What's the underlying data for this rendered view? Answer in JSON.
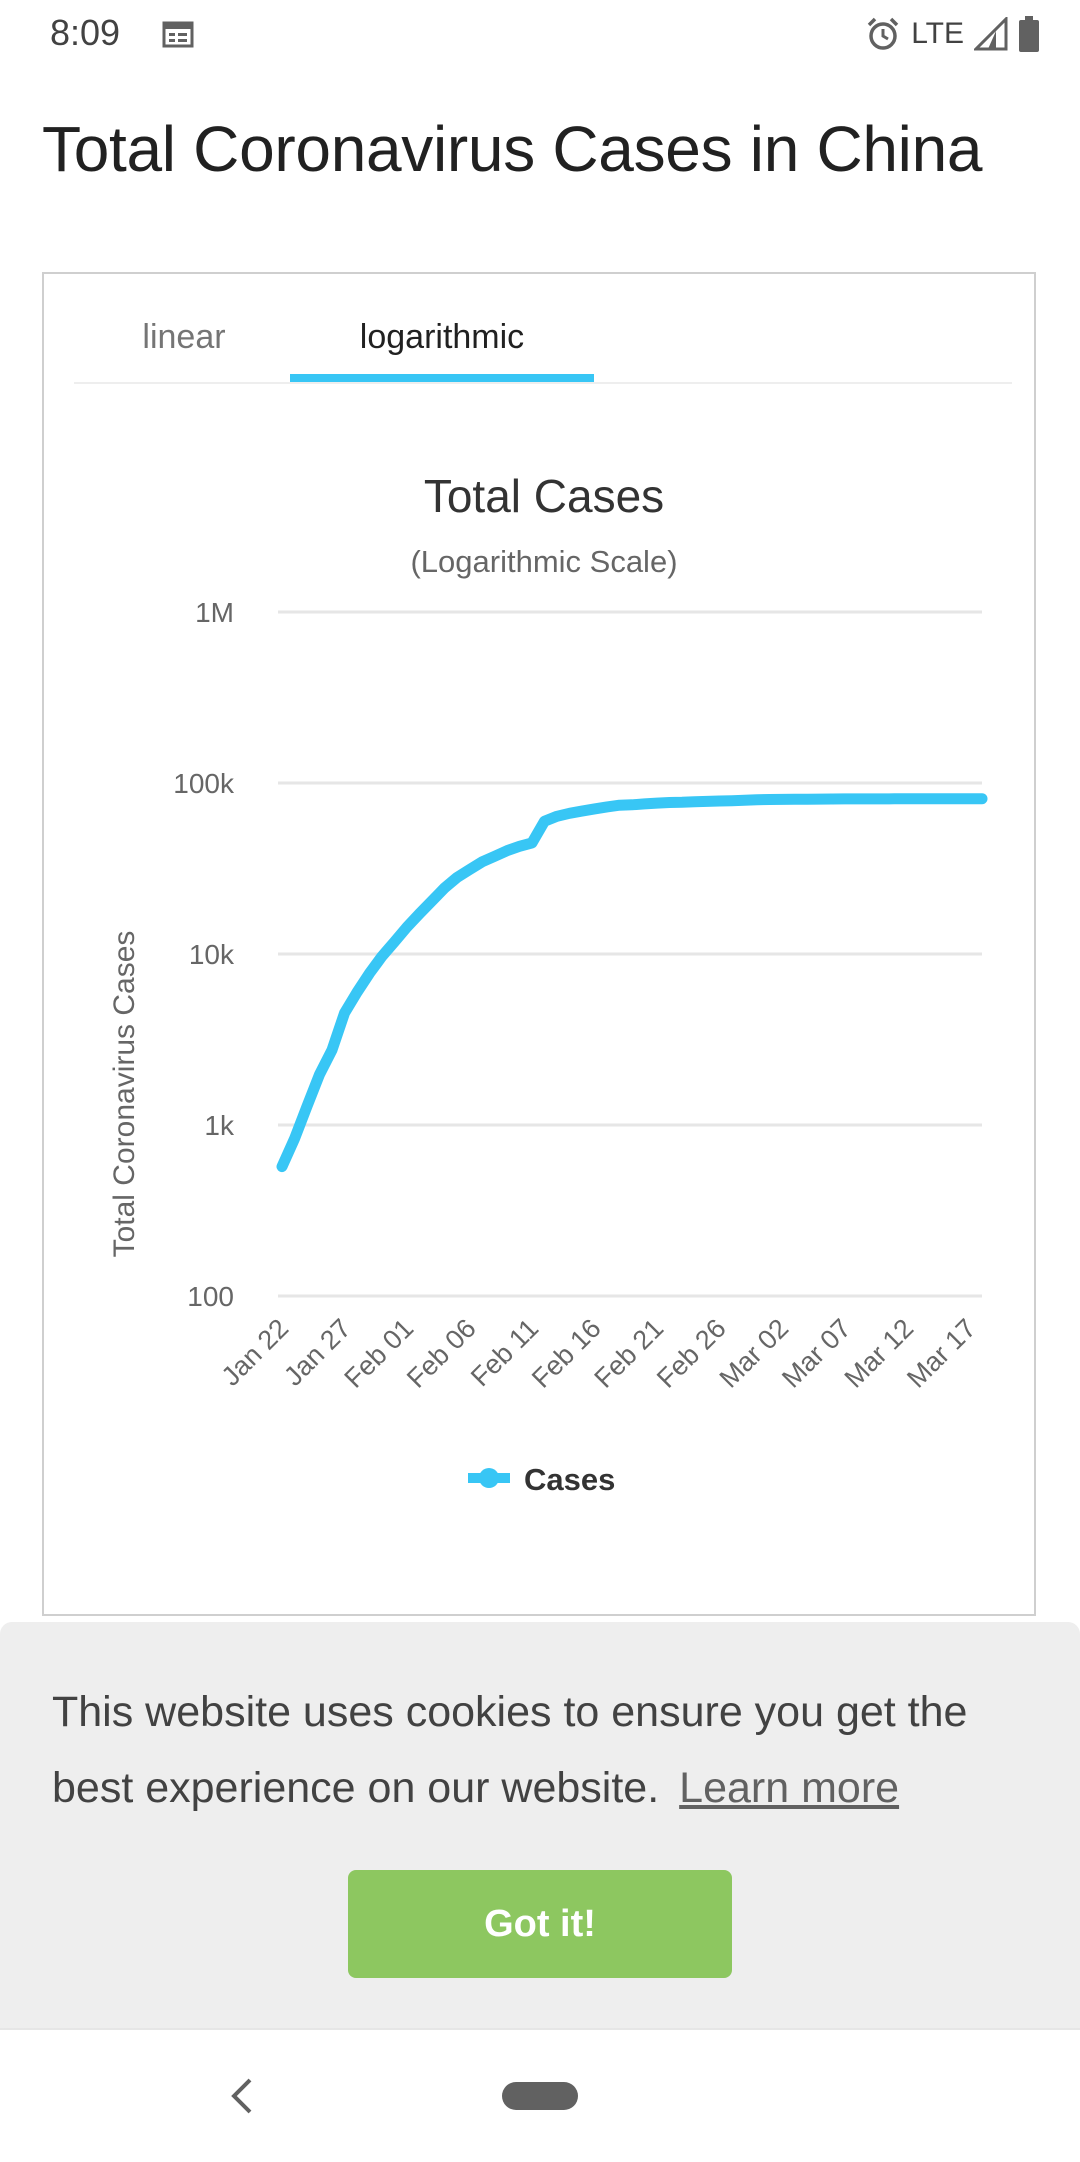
{
  "status": {
    "time": "8:09",
    "network": "LTE",
    "icons": [
      "calendar-icon",
      "alarm-icon",
      "signal-icon",
      "battery-icon"
    ]
  },
  "page": {
    "title": "Total Coronavirus Cases in China"
  },
  "tabs": [
    {
      "label": "linear",
      "active": false
    },
    {
      "label": "logarithmic",
      "active": true
    }
  ],
  "colors": {
    "accent": "#38c6f5",
    "button": "#8dc760",
    "banner": "#eeeeee"
  },
  "chart_data": {
    "type": "line",
    "title": "Total Cases",
    "subtitle": "(Logarithmic Scale)",
    "xlabel": "",
    "ylabel": "Total Coronavirus Cases",
    "y_scale": "log",
    "ylim": [
      100,
      1000000
    ],
    "y_ticks": [
      {
        "value": 100,
        "label": "100"
      },
      {
        "value": 1000,
        "label": "1k"
      },
      {
        "value": 10000,
        "label": "10k"
      },
      {
        "value": 100000,
        "label": "100k"
      },
      {
        "value": 1000000,
        "label": "1M"
      }
    ],
    "x_tick_labels": [
      "Jan 22",
      "Jan 27",
      "Feb 01",
      "Feb 06",
      "Feb 11",
      "Feb 16",
      "Feb 21",
      "Feb 26",
      "Mar 02",
      "Mar 07",
      "Mar 12",
      "Mar 17"
    ],
    "x": [
      "Jan 22",
      "Jan 23",
      "Jan 24",
      "Jan 25",
      "Jan 26",
      "Jan 27",
      "Jan 28",
      "Jan 29",
      "Jan 30",
      "Jan 31",
      "Feb 01",
      "Feb 02",
      "Feb 03",
      "Feb 04",
      "Feb 05",
      "Feb 06",
      "Feb 07",
      "Feb 08",
      "Feb 09",
      "Feb 10",
      "Feb 11",
      "Feb 12",
      "Feb 13",
      "Feb 14",
      "Feb 15",
      "Feb 16",
      "Feb 17",
      "Feb 18",
      "Feb 19",
      "Feb 20",
      "Feb 21",
      "Feb 22",
      "Feb 23",
      "Feb 24",
      "Feb 25",
      "Feb 26",
      "Feb 27",
      "Feb 28",
      "Feb 29",
      "Mar 01",
      "Mar 02",
      "Mar 03",
      "Mar 04",
      "Mar 05",
      "Mar 06",
      "Mar 07",
      "Mar 08",
      "Mar 09",
      "Mar 10",
      "Mar 11",
      "Mar 12",
      "Mar 13",
      "Mar 14",
      "Mar 15",
      "Mar 16",
      "Mar 17",
      "Mar 18"
    ],
    "series": [
      {
        "name": "Cases",
        "values": [
          571,
          830,
          1287,
          1975,
          2744,
          4515,
          5974,
          7711,
          9692,
          11791,
          14380,
          17205,
          20438,
          24324,
          28018,
          31161,
          34546,
          37198,
          40171,
          42638,
          44653,
          59804,
          63851,
          66492,
          68500,
          70548,
          72436,
          74185,
          74576,
          75465,
          76288,
          76936,
          77150,
          77658,
          78064,
          78497,
          78824,
          79251,
          79824,
          80026,
          80151,
          80270,
          80409,
          80552,
          80651,
          80695,
          80735,
          80754,
          80778,
          80793,
          80813,
          80824,
          80844,
          80860,
          80881,
          80894,
          80928
        ]
      }
    ],
    "legend": {
      "position": "bottom",
      "label": "Cases"
    },
    "grid": true
  },
  "cookie": {
    "message": "This website uses cookies to ensure you get the best experience on our website.",
    "learn_more": "Learn more",
    "button": "Got it!"
  }
}
